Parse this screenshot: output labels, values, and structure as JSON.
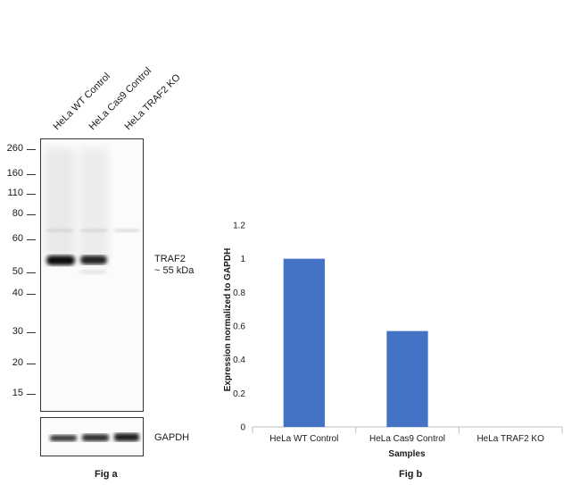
{
  "figure_a": {
    "caption": "Fig a",
    "lanes": [
      "HeLa WT Control",
      "HeLa Cas9 Control",
      "HeLa TRAF2 KO"
    ],
    "markers": [
      "260",
      "160",
      "110",
      "80",
      "60",
      "50",
      "40",
      "30",
      "20",
      "15"
    ],
    "target_label_line1": "TRAF2",
    "target_label_line2": "~ 55 kDa",
    "loading_control_label": "GAPDH"
  },
  "chart_data": {
    "type": "bar",
    "caption": "Fig b",
    "categories": [
      "HeLa WT Control",
      "HeLa Cas9 Control",
      "HeLa TRAF2 KO"
    ],
    "values": [
      1.0,
      0.57,
      0.0
    ],
    "xlabel": "Samples",
    "ylabel": "Expression normalized to GAPDH",
    "ylim": [
      0,
      1.2
    ],
    "yticks": [
      "0",
      "0.2",
      "0.4",
      "0.6",
      "0.8",
      "1",
      "1.2"
    ],
    "bar_color": "#4472c4",
    "grid": false,
    "legend": "none"
  }
}
